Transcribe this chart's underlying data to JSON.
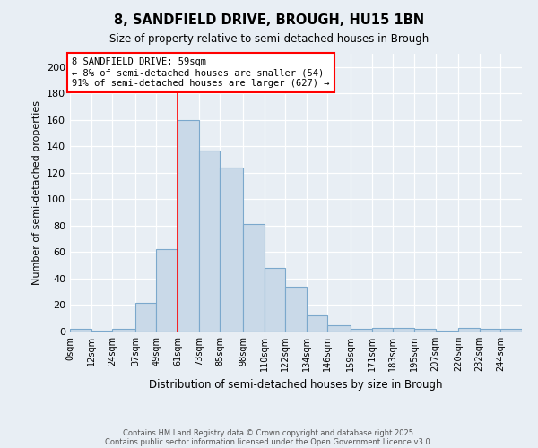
{
  "title": "8, SANDFIELD DRIVE, BROUGH, HU15 1BN",
  "subtitle": "Size of property relative to semi-detached houses in Brough",
  "xlabel": "Distribution of semi-detached houses by size in Brough",
  "ylabel": "Number of semi-detached properties",
  "annotation_title": "8 SANDFIELD DRIVE: 59sqm",
  "annotation_line1": "← 8% of semi-detached houses are smaller (54)",
  "annotation_line2": "91% of semi-detached houses are larger (627) →",
  "bin_edges": [
    0,
    12,
    24,
    37,
    49,
    61,
    73,
    85,
    98,
    110,
    122,
    134,
    146,
    159,
    171,
    183,
    195,
    207,
    220,
    232,
    244,
    256
  ],
  "bin_labels": [
    "0sqm",
    "12sqm",
    "24sqm",
    "37sqm",
    "49sqm",
    "61sqm",
    "73sqm",
    "85sqm",
    "98sqm",
    "110sqm",
    "122sqm",
    "134sqm",
    "146sqm",
    "159sqm",
    "171sqm",
    "183sqm",
    "195sqm",
    "207sqm",
    "220sqm",
    "232sqm",
    "244sqm"
  ],
  "counts": [
    2,
    1,
    2,
    22,
    62,
    160,
    137,
    124,
    81,
    48,
    34,
    12,
    5,
    2,
    3,
    3,
    2,
    1,
    3,
    2,
    2
  ],
  "bar_color": "#c9d9e8",
  "bar_edge_color": "#7ba8cc",
  "redline_x": 61,
  "ylim": [
    0,
    210
  ],
  "yticks": [
    0,
    20,
    40,
    60,
    80,
    100,
    120,
    140,
    160,
    180,
    200
  ],
  "background_color": "#e8eef4",
  "footnote1": "Contains HM Land Registry data © Crown copyright and database right 2025.",
  "footnote2": "Contains public sector information licensed under the Open Government Licence v3.0."
}
